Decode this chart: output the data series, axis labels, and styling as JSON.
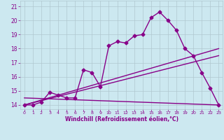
{
  "xlabel": "Windchill (Refroidissement éolien,°C)",
  "background_color": "#cce8f0",
  "line_color": "#880088",
  "grid_color": "#b0c8d0",
  "xlim": [
    -0.5,
    23.5
  ],
  "ylim": [
    13.7,
    21.4
  ],
  "yticks": [
    14,
    15,
    16,
    17,
    18,
    19,
    20,
    21
  ],
  "xticks": [
    0,
    1,
    2,
    3,
    4,
    5,
    6,
    7,
    8,
    9,
    10,
    11,
    12,
    13,
    14,
    15,
    16,
    17,
    18,
    19,
    20,
    21,
    22,
    23
  ],
  "series1_x": [
    0,
    1,
    2,
    3,
    4,
    5,
    6,
    7,
    8,
    9,
    10,
    11,
    12,
    13,
    14,
    15,
    16,
    17,
    18,
    19,
    20,
    21,
    22,
    23
  ],
  "series1_y": [
    14.0,
    14.0,
    14.2,
    14.9,
    14.7,
    14.5,
    14.5,
    16.5,
    16.3,
    15.3,
    18.2,
    18.5,
    18.4,
    18.9,
    19.0,
    20.2,
    20.6,
    20.0,
    19.3,
    18.0,
    17.5,
    16.3,
    15.2,
    14.0
  ],
  "series2_x": [
    0,
    23
  ],
  "series2_y": [
    14.0,
    18.0
  ],
  "series3_x": [
    0,
    23
  ],
  "series3_y": [
    14.0,
    17.5
  ],
  "series4_x": [
    0,
    23
  ],
  "series4_y": [
    14.5,
    14.0
  ]
}
